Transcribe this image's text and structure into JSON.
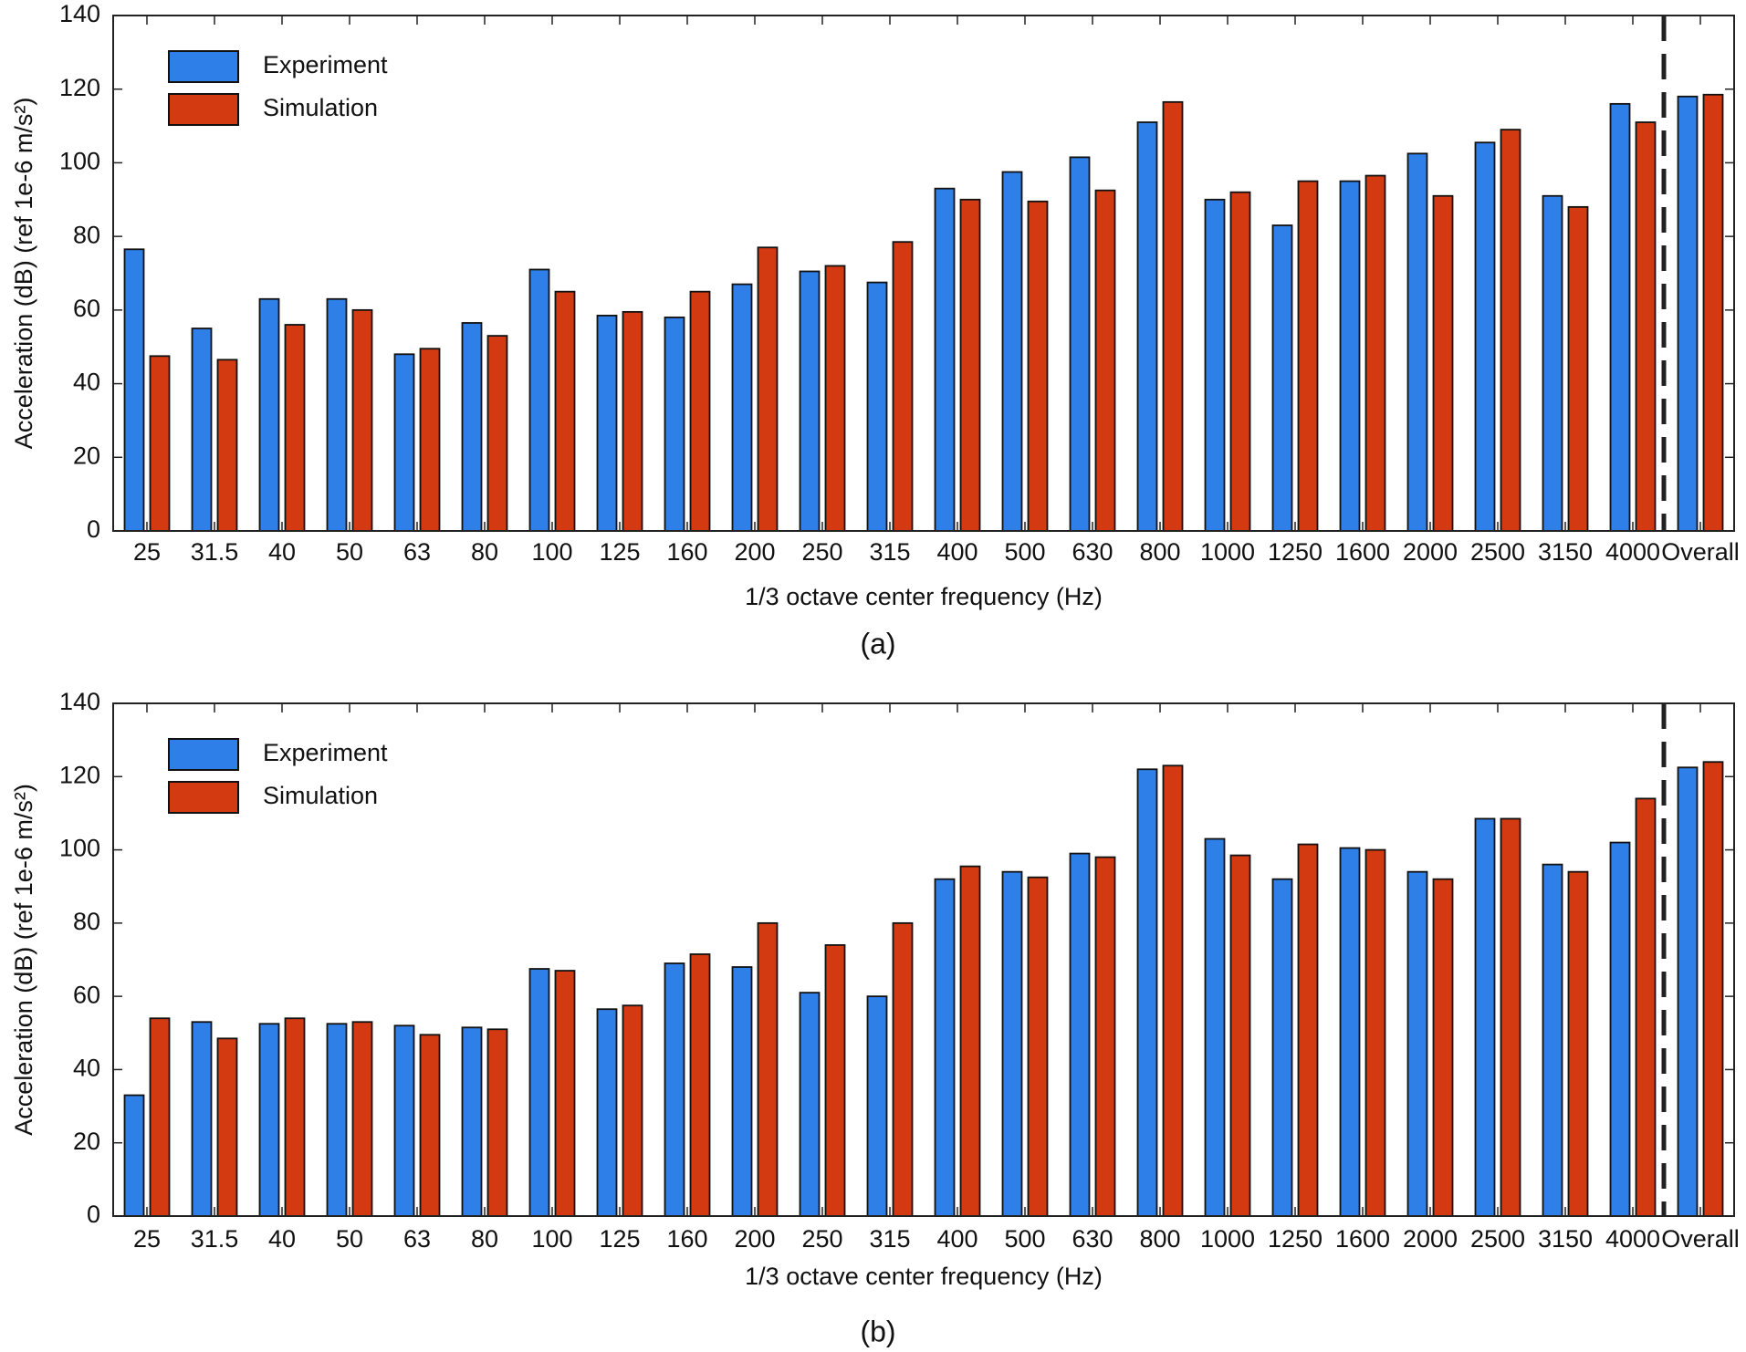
{
  "chart_data": [
    {
      "type": "bar",
      "caption": "(a)",
      "xlabel": "1/3 octave center frequency (Hz)",
      "ylabel": "Acceleration (dB) (ref 1e-6 m/s²)",
      "categories": [
        "25",
        "31.5",
        "40",
        "50",
        "63",
        "80",
        "100",
        "125",
        "160",
        "200",
        "250",
        "315",
        "400",
        "500",
        "630",
        "800",
        "1000",
        "1250",
        "1600",
        "2000",
        "2500",
        "3150",
        "4000",
        "Overall"
      ],
      "series": [
        {
          "name": "Experiment",
          "color": "#2f7fe8",
          "values": [
            76.5,
            55,
            63,
            63,
            48,
            56.5,
            71,
            58.5,
            58,
            67,
            70.5,
            67.5,
            93,
            97.5,
            101.5,
            111,
            90,
            83,
            95,
            102.5,
            105.5,
            91,
            116,
            118
          ]
        },
        {
          "name": "Simulation",
          "color": "#d43a12",
          "values": [
            47.5,
            46.5,
            56,
            60,
            49.5,
            53,
            65,
            59.5,
            65,
            77,
            72,
            78.5,
            90,
            89.5,
            92.5,
            116.5,
            92,
            95,
            96.5,
            91,
            109,
            88,
            111,
            118.5
          ]
        }
      ],
      "ylim": [
        0,
        140
      ],
      "yticks": [
        0,
        20,
        40,
        60,
        80,
        100,
        120,
        140
      ],
      "legend": "upper left"
    },
    {
      "type": "bar",
      "caption": "(b)",
      "xlabel": "1/3 octave center frequency (Hz)",
      "ylabel": "Acceleration (dB) (ref 1e-6 m/s²)",
      "categories": [
        "25",
        "31.5",
        "40",
        "50",
        "63",
        "80",
        "100",
        "125",
        "160",
        "200",
        "250",
        "315",
        "400",
        "500",
        "630",
        "800",
        "1000",
        "1250",
        "1600",
        "2000",
        "2500",
        "3150",
        "4000",
        "Overall"
      ],
      "series": [
        {
          "name": "Experiment",
          "color": "#2f7fe8",
          "values": [
            33,
            53,
            52.5,
            52.5,
            52,
            51.5,
            67.5,
            56.5,
            69,
            68,
            61,
            60,
            92,
            94,
            99,
            122,
            103,
            92,
            100.5,
            94,
            108.5,
            96,
            102,
            122.5
          ]
        },
        {
          "name": "Simulation",
          "color": "#d43a12",
          "values": [
            54,
            48.5,
            54,
            53,
            49.5,
            51,
            67,
            57.5,
            71.5,
            80,
            74,
            80,
            95.5,
            92.5,
            98,
            123,
            98.5,
            101.5,
            100,
            92,
            108.5,
            94,
            114,
            124
          ]
        }
      ],
      "ylim": [
        0,
        140
      ],
      "yticks": [
        0,
        20,
        40,
        60,
        80,
        100,
        120,
        140
      ],
      "legend": "upper left"
    }
  ]
}
